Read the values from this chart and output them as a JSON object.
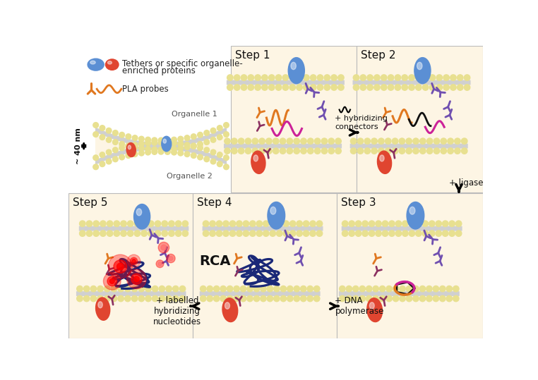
{
  "bg_color": "#ffffff",
  "panel_bg": "#fdf5e4",
  "blue_c": "#5b8fd4",
  "red_c": "#e04530",
  "orange_c": "#e07820",
  "magenta_c": "#cc2299",
  "purple_c": "#7050b0",
  "dpurp_c": "#8b3060",
  "navy_c": "#1a2878",
  "bead_c": "#e8e090",
  "inner_c": "#d0d0d0",
  "legend_title1": "Tethers or specific organelle-",
  "legend_title2": "enriched proteins",
  "legend_pla": "PLA probes",
  "organelle1_label": "Organelle 1",
  "organelle2_label": "Organelle 2",
  "scale_label": "~ 40 nm"
}
